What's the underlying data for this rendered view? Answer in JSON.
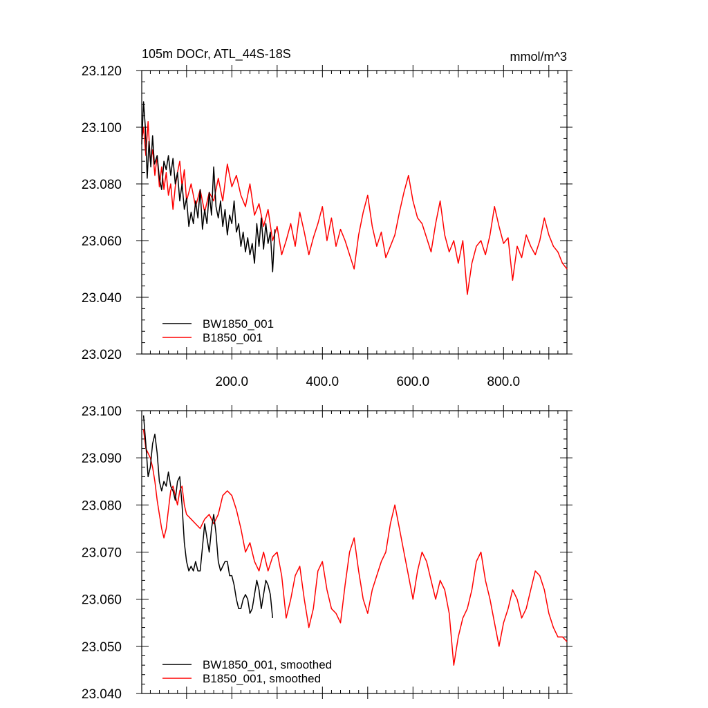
{
  "chart_data": [
    {
      "type": "line",
      "title": "105m DOCr, ATL_44S-18S",
      "units": "mmol/m^3",
      "xlim": [
        1,
        940
      ],
      "ylim": [
        23.02,
        23.12
      ],
      "x_ticks": [
        200,
        400,
        600,
        800
      ],
      "x_tick_labels": [
        "200.0",
        "400.0",
        "600.0",
        "800.0"
      ],
      "y_ticks": [
        23.02,
        23.04,
        23.06,
        23.08,
        23.1,
        23.12
      ],
      "y_tick_labels": [
        "23.020",
        "23.040",
        "23.060",
        "23.080",
        "23.100",
        "23.120"
      ],
      "grid": false,
      "legend_position": "bottom-left",
      "series": [
        {
          "name": "BW1850_001",
          "color": "#000000",
          "x": [
            1,
            5,
            9,
            13,
            17,
            21,
            25,
            29,
            35,
            40,
            45,
            50,
            55,
            60,
            65,
            70,
            75,
            80,
            85,
            90,
            95,
            100,
            105,
            110,
            115,
            120,
            125,
            130,
            135,
            140,
            145,
            150,
            155,
            160,
            165,
            170,
            175,
            180,
            185,
            190,
            195,
            200,
            205,
            210,
            215,
            220,
            225,
            230,
            235,
            240,
            245,
            250,
            255,
            260,
            265,
            270,
            275,
            280,
            285,
            290,
            295
          ],
          "values": [
            23.094,
            23.109,
            23.1,
            23.082,
            23.095,
            23.086,
            23.097,
            23.087,
            23.09,
            23.082,
            23.078,
            23.088,
            23.085,
            23.09,
            23.083,
            23.089,
            23.08,
            23.084,
            23.074,
            23.08,
            23.071,
            23.075,
            23.065,
            23.07,
            23.066,
            23.074,
            23.068,
            23.078,
            23.064,
            23.071,
            23.066,
            23.077,
            23.069,
            23.086,
            23.072,
            23.068,
            23.074,
            23.065,
            23.071,
            23.062,
            23.069,
            23.066,
            23.074,
            23.063,
            23.066,
            23.058,
            23.063,
            23.056,
            23.061,
            23.055,
            23.059,
            23.052,
            23.066,
            23.058,
            23.068,
            23.057,
            23.066,
            23.059,
            23.063,
            23.049,
            23.064
          ]
        },
        {
          "name": "B1850_001",
          "color": "#ff0000",
          "x": [
            1,
            5,
            10,
            15,
            20,
            25,
            30,
            35,
            40,
            45,
            50,
            55,
            60,
            65,
            70,
            75,
            80,
            85,
            90,
            95,
            100,
            110,
            120,
            130,
            140,
            150,
            160,
            170,
            180,
            190,
            200,
            210,
            220,
            230,
            240,
            250,
            260,
            270,
            280,
            290,
            300,
            310,
            320,
            330,
            340,
            350,
            360,
            370,
            380,
            390,
            400,
            410,
            420,
            430,
            440,
            450,
            460,
            470,
            480,
            490,
            500,
            510,
            520,
            530,
            540,
            550,
            560,
            570,
            580,
            590,
            600,
            610,
            620,
            630,
            640,
            650,
            660,
            670,
            680,
            690,
            700,
            710,
            720,
            730,
            740,
            750,
            760,
            770,
            780,
            790,
            800,
            810,
            820,
            830,
            840,
            850,
            860,
            870,
            880,
            890,
            900,
            910,
            920,
            930,
            940
          ],
          "values": [
            23.095,
            23.1,
            23.09,
            23.102,
            23.088,
            23.092,
            23.083,
            23.09,
            23.079,
            23.086,
            23.078,
            23.084,
            23.076,
            23.08,
            23.071,
            23.079,
            23.084,
            23.088,
            23.079,
            23.085,
            23.074,
            23.08,
            23.072,
            23.078,
            23.07,
            23.077,
            23.074,
            23.082,
            23.074,
            23.087,
            23.079,
            23.083,
            23.076,
            23.072,
            23.08,
            23.069,
            23.073,
            23.065,
            23.071,
            23.06,
            23.065,
            23.055,
            23.06,
            23.066,
            23.058,
            23.07,
            23.063,
            23.055,
            23.061,
            23.066,
            23.072,
            23.06,
            23.068,
            23.058,
            23.064,
            23.06,
            23.055,
            23.05,
            23.062,
            23.07,
            23.076,
            23.065,
            23.058,
            23.063,
            23.054,
            23.058,
            23.062,
            23.07,
            23.077,
            23.083,
            23.074,
            23.068,
            23.066,
            23.061,
            23.056,
            23.066,
            23.074,
            23.062,
            23.056,
            23.06,
            23.052,
            23.06,
            23.041,
            23.052,
            23.058,
            23.06,
            23.055,
            23.062,
            23.072,
            23.065,
            23.059,
            23.061,
            23.046,
            23.058,
            23.054,
            23.062,
            23.058,
            23.055,
            23.06,
            23.068,
            23.062,
            23.058,
            23.056,
            23.052,
            23.05
          ]
        }
      ]
    },
    {
      "type": "line",
      "xlim": [
        1,
        940
      ],
      "ylim": [
        23.04,
        23.1
      ],
      "y_ticks": [
        23.04,
        23.05,
        23.06,
        23.07,
        23.08,
        23.09,
        23.1
      ],
      "y_tick_labels": [
        "23.040",
        "23.050",
        "23.060",
        "23.070",
        "23.080",
        "23.090",
        "23.100"
      ],
      "grid": false,
      "legend_position": "bottom-left",
      "series": [
        {
          "name": "BW1850_001, smoothed",
          "color": "#000000",
          "x": [
            5,
            10,
            15,
            20,
            25,
            30,
            35,
            40,
            45,
            50,
            55,
            60,
            65,
            70,
            75,
            80,
            85,
            90,
            95,
            100,
            105,
            110,
            115,
            120,
            125,
            130,
            135,
            140,
            145,
            150,
            155,
            160,
            165,
            170,
            175,
            180,
            185,
            190,
            195,
            200,
            205,
            210,
            215,
            220,
            225,
            230,
            235,
            240,
            245,
            250,
            255,
            260,
            265,
            270,
            275,
            280,
            285,
            290
          ],
          "values": [
            23.099,
            23.093,
            23.086,
            23.088,
            23.093,
            23.095,
            23.091,
            23.085,
            23.083,
            23.085,
            23.084,
            23.087,
            23.084,
            23.083,
            23.081,
            23.085,
            23.086,
            23.08,
            23.072,
            23.068,
            23.066,
            23.067,
            23.066,
            23.068,
            23.066,
            23.066,
            23.071,
            23.076,
            23.073,
            23.07,
            23.075,
            23.078,
            23.074,
            23.068,
            23.066,
            23.067,
            23.068,
            23.068,
            23.065,
            23.065,
            23.063,
            23.06,
            23.058,
            23.058,
            23.06,
            23.061,
            23.06,
            23.057,
            23.058,
            23.061,
            23.064,
            23.062,
            23.058,
            23.061,
            23.064,
            23.063,
            23.061,
            23.056
          ]
        },
        {
          "name": "B1850_001, smoothed",
          "color": "#ff0000",
          "x": [
            5,
            10,
            15,
            20,
            25,
            30,
            35,
            40,
            45,
            50,
            55,
            60,
            65,
            70,
            75,
            80,
            85,
            90,
            95,
            100,
            110,
            120,
            130,
            140,
            150,
            160,
            170,
            180,
            190,
            200,
            210,
            220,
            230,
            240,
            250,
            260,
            270,
            280,
            290,
            300,
            310,
            320,
            330,
            340,
            350,
            360,
            370,
            380,
            390,
            400,
            410,
            420,
            430,
            440,
            450,
            460,
            470,
            480,
            490,
            500,
            510,
            520,
            530,
            540,
            550,
            560,
            570,
            580,
            590,
            600,
            610,
            620,
            630,
            640,
            650,
            660,
            670,
            680,
            690,
            700,
            710,
            720,
            730,
            740,
            750,
            760,
            770,
            780,
            790,
            800,
            810,
            820,
            830,
            840,
            850,
            860,
            870,
            880,
            890,
            900,
            910,
            920,
            930,
            940
          ],
          "values": [
            23.096,
            23.092,
            23.091,
            23.09,
            23.088,
            23.085,
            23.081,
            23.078,
            23.075,
            23.073,
            23.075,
            23.079,
            23.083,
            23.084,
            23.082,
            23.08,
            23.083,
            23.084,
            23.08,
            23.078,
            23.077,
            23.076,
            23.075,
            23.077,
            23.078,
            23.076,
            23.078,
            23.082,
            23.083,
            23.082,
            23.079,
            23.075,
            23.07,
            23.072,
            23.068,
            23.066,
            23.07,
            23.066,
            23.069,
            23.07,
            23.065,
            23.056,
            23.06,
            23.065,
            23.067,
            23.06,
            23.054,
            23.058,
            23.066,
            23.068,
            23.062,
            23.058,
            23.057,
            23.055,
            23.063,
            23.07,
            23.073,
            23.066,
            23.06,
            23.057,
            23.062,
            23.065,
            23.068,
            23.07,
            23.076,
            23.08,
            23.075,
            23.07,
            23.065,
            23.06,
            23.066,
            23.07,
            23.068,
            23.064,
            23.06,
            23.064,
            23.062,
            23.057,
            23.046,
            23.052,
            23.056,
            23.058,
            23.062,
            23.068,
            23.07,
            23.064,
            23.06,
            23.055,
            23.05,
            23.055,
            23.058,
            23.062,
            23.06,
            23.056,
            23.058,
            23.062,
            23.066,
            23.065,
            23.062,
            23.057,
            23.054,
            23.052,
            23.052,
            23.051
          ]
        }
      ]
    }
  ]
}
